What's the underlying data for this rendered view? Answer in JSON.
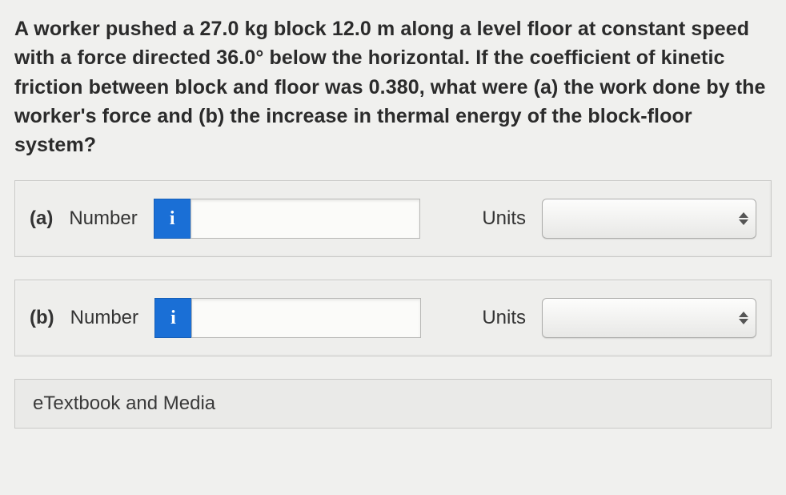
{
  "question": "A worker pushed a 27.0 kg block 12.0 m along a level floor at constant speed with a force directed 36.0° below the horizontal. If the coefficient of kinetic friction between block and floor was 0.380, what were (a) the work done by the worker's force and (b) the increase in thermal energy of the block-floor system?",
  "rows": {
    "a": {
      "part": "(a)",
      "number_label": "Number",
      "info_icon": "i",
      "value": "",
      "units_label": "Units",
      "units_value": ""
    },
    "b": {
      "part": "(b)",
      "number_label": "Number",
      "info_icon": "i",
      "value": "",
      "units_label": "Units",
      "units_value": ""
    }
  },
  "etextbook_label": "eTextbook and Media",
  "colors": {
    "info_button_bg": "#1a6fd6",
    "panel_border": "#c9c9c7",
    "page_bg": "#f0f0ee",
    "text": "#2b2b2b"
  }
}
